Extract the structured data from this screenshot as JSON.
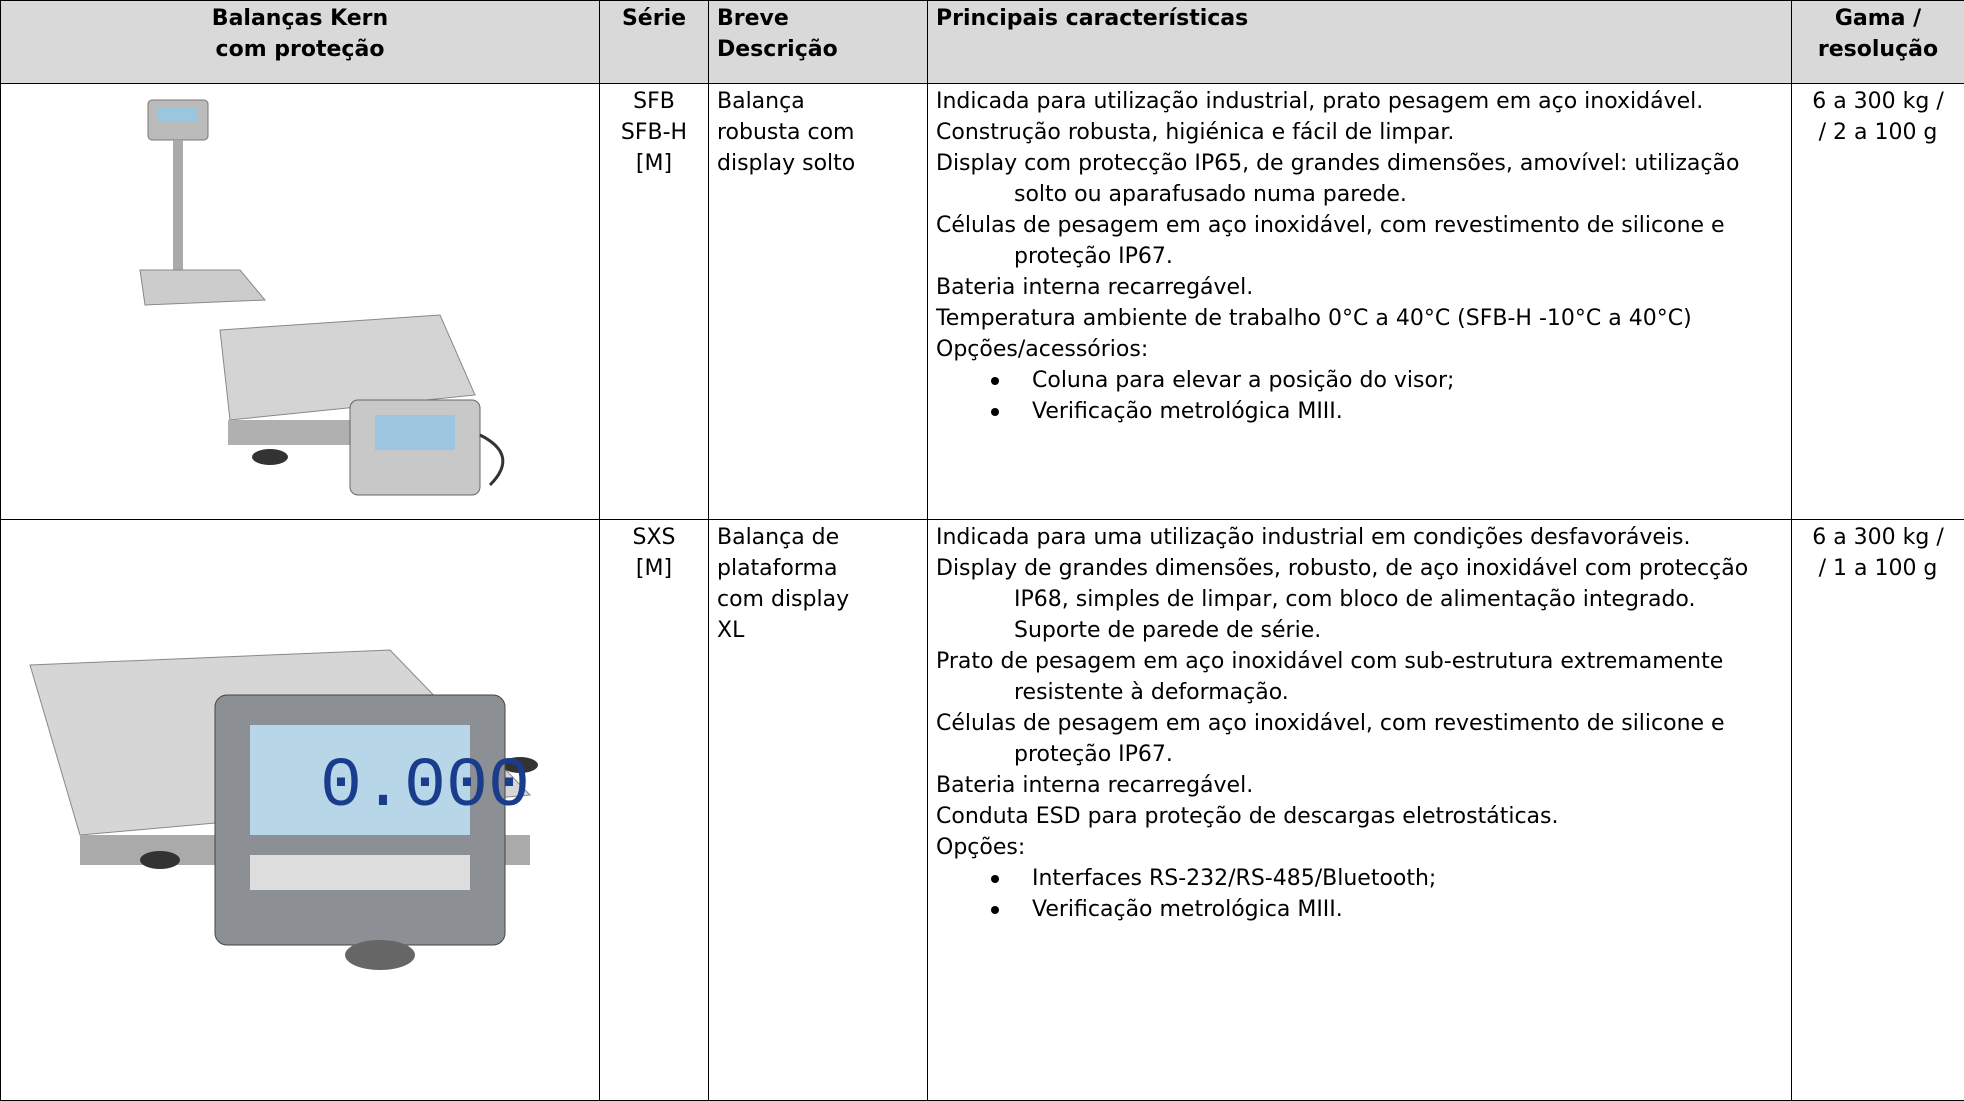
{
  "table": {
    "header": [
      [
        "Balanças Kern",
        "com proteção"
      ],
      [
        "Série"
      ],
      [
        "Breve",
        "Descrição"
      ],
      [
        "Principais características"
      ],
      [
        "Gama /",
        "resolução"
      ]
    ],
    "rows": [
      {
        "series": [
          "SFB",
          "SFB-H",
          "[M]"
        ],
        "description": [
          "Balança",
          "robusta com",
          "display solto"
        ],
        "features": [
          "Indicada para utilização industrial, prato pesagem em aço inoxidável.",
          "Construção robusta, higiénica e fácil de limpar.",
          "Display com protecção IP65, de grandes dimensões, amovível: utilização solto ou aparafusado numa parede.",
          "Células de pesagem em aço inoxidável, com revestimento de silicone e proteção IP67.",
          "Bateria interna recarregável.",
          "Temperatura ambiente de trabalho 0°C a 40°C (SFB-H -10°C a 40°C)",
          "Opções/acessórios:"
        ],
        "bullets": [
          "Coluna para elevar a posição do visor;",
          "Verificação metrológica MIII."
        ],
        "range": [
          "6 a 300 kg /",
          "/ 2 a 100 g"
        ]
      },
      {
        "series": [
          "SXS",
          "[M]"
        ],
        "description": [
          "Balança de",
          "plataforma",
          "com display",
          "XL"
        ],
        "features": [
          "Indicada para uma utilização industrial em condições desfavoráveis.",
          "Display de grandes dimensões, robusto, de aço inoxidável com protecção IP68, simples de limpar, com bloco de alimentação integrado. Suporte de parede de série.",
          "Prato de pesagem em aço inoxidável com sub-estrutura extremamente resistente à deformação.",
          "Células de pesagem em aço inoxidável, com revestimento de silicone e proteção IP67.",
          "Bateria interna recarregável.",
          "Conduta ESD para proteção de descargas eletrostáticas.",
          "Opções:"
        ],
        "bullets": [
          "Interfaces RS-232/RS-485/Bluetooth;",
          "Verificação metrológica MIII."
        ],
        "range": [
          "6 a 300 kg /",
          "/ 1 a 100 g"
        ]
      }
    ]
  }
}
